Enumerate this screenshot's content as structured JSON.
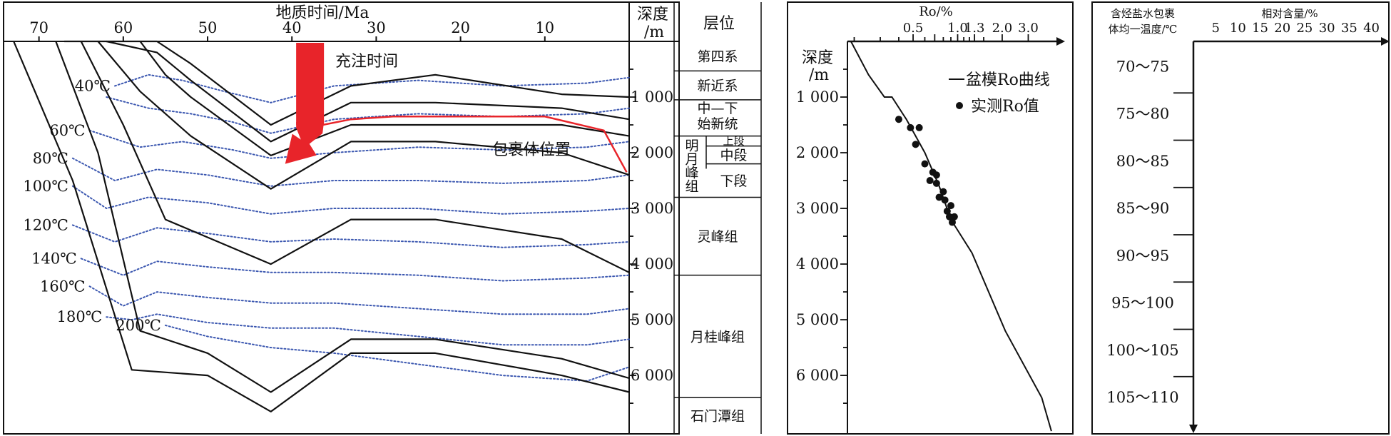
{
  "chart_data": [
    {
      "type": "line",
      "name": "burial_history",
      "xlabel": "地质时间/Ma",
      "x_ticks": [
        70,
        60,
        50,
        40,
        30,
        20,
        10
      ],
      "xlim": [
        74.2,
        0
      ],
      "ylim": [
        0,
        7050
      ],
      "depth_header": "深度/m",
      "depth_ticks": [
        1000,
        2000,
        3000,
        4000,
        5000,
        6000
      ],
      "depth_tick_labels": [
        "1 000",
        "2 000",
        "3 000",
        "4 000",
        "5 000",
        "6 000"
      ],
      "burial_curves": [
        {
          "points": [
            [
              67,
              0
            ],
            [
              62,
              0
            ],
            [
              56,
              0
            ],
            [
              52,
              400
            ],
            [
              42.5,
              1500
            ],
            [
              33,
              800
            ],
            [
              23,
              600
            ],
            [
              8,
              950
            ],
            [
              0,
              1000
            ]
          ]
        },
        {
          "points": [
            [
              62,
              0
            ],
            [
              56,
              200
            ],
            [
              52,
              700
            ],
            [
              42.5,
              1800
            ],
            [
              33,
              1100
            ],
            [
              23,
              1100
            ],
            [
              8,
              1200
            ],
            [
              0,
              1400
            ]
          ]
        },
        {
          "points": [
            [
              58,
              0
            ],
            [
              55,
              600
            ],
            [
              52,
              1000
            ],
            [
              42.5,
              2050
            ],
            [
              33,
              1500
            ],
            [
              23,
              1500
            ],
            [
              8,
              1500
            ],
            [
              0,
              1700
            ]
          ]
        },
        {
          "points": [
            [
              63,
              0
            ],
            [
              58,
              900
            ],
            [
              52,
              1700
            ],
            [
              42.5,
              2650
            ],
            [
              33,
              1800
            ],
            [
              23,
              1800
            ],
            [
              8,
              2000
            ],
            [
              0,
              2400
            ]
          ]
        },
        {
          "points": [
            [
              65,
              0
            ],
            [
              60,
              1500
            ],
            [
              55,
              3200
            ],
            [
              42.5,
              4000
            ],
            [
              33,
              3200
            ],
            [
              23,
              3200
            ],
            [
              8,
              3550
            ],
            [
              0,
              4150
            ]
          ]
        },
        {
          "points": [
            [
              68,
              0
            ],
            [
              63,
              2000
            ],
            [
              58,
              5200
            ],
            [
              50,
              5600
            ],
            [
              42.5,
              6300
            ],
            [
              33,
              5350
            ],
            [
              23,
              5350
            ],
            [
              8,
              5700
            ],
            [
              0,
              6050
            ]
          ]
        },
        {
          "points": [
            [
              73,
              0
            ],
            [
              66,
              2500
            ],
            [
              59,
              5900
            ],
            [
              50,
              6000
            ],
            [
              42.5,
              6650
            ],
            [
              33,
              5600
            ],
            [
              23,
              5600
            ],
            [
              8,
              6000
            ],
            [
              0,
              6300
            ]
          ]
        }
      ],
      "inclusion_curve": {
        "label": "包裹体位置",
        "color": "#e8242a",
        "points": [
          [
            38,
            1550
          ],
          [
            33,
            1400
          ],
          [
            28,
            1350
          ],
          [
            10,
            1350
          ],
          [
            3,
            1600
          ],
          [
            0.3,
            2350
          ]
        ]
      },
      "charging": {
        "label": "充注时间",
        "color": "#e8242a",
        "time_range": [
          39.5,
          36.2
        ],
        "arrow_head_depth": 2200
      },
      "isotherms": [
        {
          "label": "40℃",
          "points": [
            [
              61,
              800
            ],
            [
              57,
              600
            ],
            [
              53,
              700
            ],
            [
              48,
              900
            ],
            [
              42.5,
              1100
            ],
            [
              35,
              800
            ],
            [
              25,
              700
            ],
            [
              15,
              800
            ],
            [
              5,
              750
            ],
            [
              0,
              650
            ]
          ]
        },
        {
          "points": [
            [
              62,
              1000
            ],
            [
              57,
              1200
            ],
            [
              52,
              1300
            ],
            [
              47,
              1450
            ],
            [
              42.5,
              1650
            ],
            [
              35,
              1400
            ],
            [
              25,
              1300
            ],
            [
              15,
              1350
            ],
            [
              5,
              1300
            ],
            [
              0,
              1200
            ]
          ]
        },
        {
          "label": "60℃",
          "points": [
            [
              64,
              1600
            ],
            [
              58,
              1900
            ],
            [
              53,
              1800
            ],
            [
              47,
              1950
            ],
            [
              42.5,
              2100
            ],
            [
              35,
              2000
            ],
            [
              25,
              1900
            ],
            [
              15,
              1950
            ],
            [
              5,
              1900
            ],
            [
              0,
              1800
            ]
          ]
        },
        {
          "label": "80℃",
          "points": [
            [
              66,
              2100
            ],
            [
              61,
              2500
            ],
            [
              56,
              2300
            ],
            [
              50,
              2400
            ],
            [
              42.5,
              2600
            ],
            [
              35,
              2500
            ],
            [
              25,
              2500
            ],
            [
              15,
              2550
            ],
            [
              5,
              2500
            ],
            [
              0,
              2400
            ]
          ]
        },
        {
          "label": "100℃",
          "points": [
            [
              66,
              2600
            ],
            [
              62,
              3000
            ],
            [
              57,
              2800
            ],
            [
              50,
              2900
            ],
            [
              42.5,
              3100
            ],
            [
              35,
              3000
            ],
            [
              25,
              3000
            ],
            [
              15,
              3100
            ],
            [
              5,
              3050
            ],
            [
              0,
              3000
            ]
          ]
        },
        {
          "label": "120℃",
          "points": [
            [
              66,
              3300
            ],
            [
              61,
              3600
            ],
            [
              56,
              3350
            ],
            [
              50,
              3450
            ],
            [
              42.5,
              3600
            ],
            [
              35,
              3550
            ],
            [
              25,
              3600
            ],
            [
              15,
              3700
            ],
            [
              5,
              3650
            ],
            [
              0,
              3600
            ]
          ]
        },
        {
          "label": "140℃",
          "points": [
            [
              65,
              3900
            ],
            [
              60,
              4200
            ],
            [
              56,
              3950
            ],
            [
              50,
              4050
            ],
            [
              42.5,
              4150
            ],
            [
              35,
              4150
            ],
            [
              25,
              4200
            ],
            [
              15,
              4300
            ],
            [
              5,
              4250
            ],
            [
              0,
              4200
            ]
          ]
        },
        {
          "label": "160℃",
          "points": [
            [
              64,
              4400
            ],
            [
              60,
              4750
            ],
            [
              56,
              4500
            ],
            [
              50,
              4600
            ],
            [
              42.5,
              4700
            ],
            [
              35,
              4700
            ],
            [
              25,
              4800
            ],
            [
              15,
              4900
            ],
            [
              5,
              4900
            ],
            [
              0,
              4800
            ]
          ]
        },
        {
          "label": "180℃",
          "points": [
            [
              62,
              4950
            ],
            [
              59,
              5000
            ],
            [
              56,
              4900
            ],
            [
              50,
              5050
            ],
            [
              42.5,
              5150
            ],
            [
              35,
              5150
            ],
            [
              25,
              5300
            ],
            [
              15,
              5450
            ],
            [
              5,
              5450
            ],
            [
              0,
              5350
            ]
          ]
        },
        {
          "label": "200℃",
          "points": [
            [
              55,
              5100
            ],
            [
              50,
              5300
            ],
            [
              42.5,
              5500
            ],
            [
              35,
              5600
            ],
            [
              25,
              5800
            ],
            [
              15,
              6000
            ],
            [
              5,
              6100
            ],
            [
              0,
              5850
            ]
          ]
        }
      ]
    },
    {
      "type": "table",
      "name": "stratigraphy",
      "header": "层位",
      "units": [
        {
          "label": "第四系",
          "top": 0,
          "bottom": 530
        },
        {
          "label": "新近系",
          "top": 530,
          "bottom": 1050
        },
        {
          "label": "中—下始新统",
          "top": 1050,
          "bottom": 1700
        },
        {
          "label": "上段",
          "top": 1700,
          "bottom": 1880,
          "group": "明月峰组"
        },
        {
          "label": "中段",
          "top": 1880,
          "bottom": 2200,
          "group": "明月峰组"
        },
        {
          "label": "下段",
          "top": 2200,
          "bottom": 2800,
          "group": "明月峰组"
        },
        {
          "label": "灵峰组",
          "top": 2800,
          "bottom": 4200
        },
        {
          "label": "月桂峰组",
          "top": 4200,
          "bottom": 6400
        },
        {
          "label": "石门潭组",
          "top": 6400,
          "bottom": 7050
        }
      ]
    },
    {
      "type": "scatter",
      "name": "vitrinite_reflectance",
      "xlabel": "Ro/%",
      "ylabel": "深度/m",
      "x_ticks": [
        0.5,
        0.7,
        1.0,
        1.3,
        2.0,
        3.0
      ],
      "x_tick_labels": [
        "0.5",
        "",
        "1.0",
        "1.3",
        "2.0",
        "3.0"
      ],
      "x_minor_ticks": [
        0.2,
        0.3,
        0.4,
        0.6,
        0.8,
        0.9,
        1.1,
        1.2,
        1.5
      ],
      "xscale": "log",
      "xlim": [
        0.18,
        4.5
      ],
      "ylim": [
        0,
        7050
      ],
      "y_ticks": [
        1000,
        2000,
        3000,
        4000,
        5000,
        6000
      ],
      "y_tick_labels": [
        "1 000",
        "2 000",
        "3 000",
        "4 000",
        "5 000",
        "6 000"
      ],
      "legend": {
        "placement": "top-right",
        "curve_label": "盆模Ro曲线",
        "points_label": "实测Ro值"
      },
      "model_curve": [
        [
          0.19,
          0
        ],
        [
          0.25,
          600
        ],
        [
          0.32,
          1000
        ],
        [
          0.36,
          1000
        ],
        [
          0.45,
          1400
        ],
        [
          0.6,
          2000
        ],
        [
          0.75,
          2600
        ],
        [
          0.9,
          3200
        ],
        [
          1.25,
          3800
        ],
        [
          2.1,
          5200
        ],
        [
          3.7,
          6400
        ],
        [
          4.3,
          7000
        ]
      ],
      "measured": [
        [
          0.4,
          1400
        ],
        [
          0.48,
          1550
        ],
        [
          0.55,
          1550
        ],
        [
          0.52,
          1850
        ],
        [
          0.6,
          2200
        ],
        [
          0.68,
          2350
        ],
        [
          0.72,
          2400
        ],
        [
          0.65,
          2500
        ],
        [
          0.72,
          2550
        ],
        [
          0.8,
          2700
        ],
        [
          0.75,
          2800
        ],
        [
          0.82,
          2850
        ],
        [
          0.9,
          2950
        ],
        [
          0.85,
          3050
        ],
        [
          0.88,
          3150
        ],
        [
          0.95,
          3150
        ],
        [
          0.92,
          3250
        ]
      ]
    },
    {
      "type": "bar",
      "name": "inclusion_temperature",
      "category_header": "含烃盐水包裹体均一温度/℃",
      "value_header": "相对含量/%",
      "value_ticks": [
        5,
        10,
        15,
        20,
        25,
        30,
        35,
        40
      ],
      "xlim": [
        0,
        42
      ],
      "categories": [
        "70～75",
        "75～80",
        "80～85",
        "85～90",
        "90～95",
        "95～100",
        "100～105",
        "105～110"
      ],
      "values": [
        0,
        0,
        0,
        0,
        0,
        0,
        0,
        0
      ]
    }
  ]
}
